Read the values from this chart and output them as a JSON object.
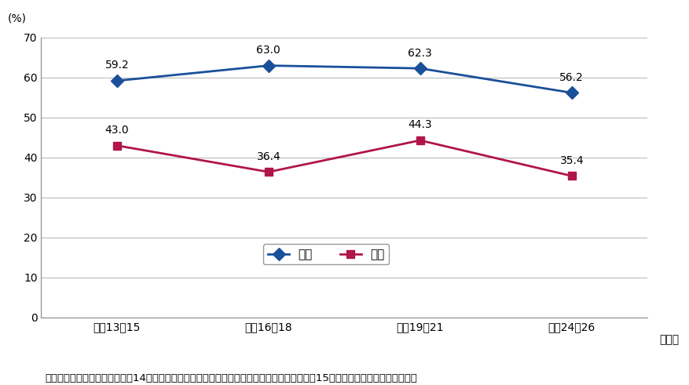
{
  "x_labels": [
    "平成13～15",
    "平成16～18",
    "平成19～21",
    "平成24～26"
  ],
  "x_positions": [
    0,
    1,
    2,
    3
  ],
  "male_values": [
    59.2,
    63.0,
    62.3,
    56.2
  ],
  "female_values": [
    43.0,
    36.4,
    44.3,
    35.4
  ],
  "male_color": "#1a4f99",
  "female_color": "#b0154b",
  "male_label": "男性",
  "female_label": "女性",
  "ylim": [
    0,
    70
  ],
  "yticks": [
    0,
    10,
    20,
    30,
    40,
    50,
    60,
    70
  ],
  "ylabel": "(%)",
  "xlabel_suffix": "（年）",
  "footnote": "出典：「国民栄養調査」（平成14年まで）及び「国民健康・栄養調査」（厚生労働省）（平成15年以降）から東京都分を再集計",
  "background_color": "#ffffff",
  "grid_color": "#bbbbbb",
  "marker_size": 8,
  "linewidth": 2.0,
  "data_label_fontsize": 10,
  "axis_fontsize": 10,
  "legend_fontsize": 11,
  "footnote_fontsize": 9.5
}
